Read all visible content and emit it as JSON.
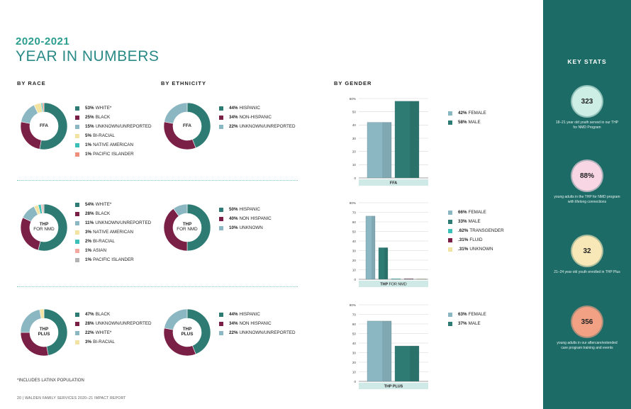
{
  "heading": {
    "year": "2020-2021",
    "title": "YEAR IN NUMBERS"
  },
  "columns": {
    "race": "BY RACE",
    "ethnicity": "BY ETHNICITY",
    "gender": "BY GENDER"
  },
  "colors": {
    "teal_dark": "#2e7b74",
    "maroon": "#7a1f45",
    "steel": "#8bb7c2",
    "gold": "#f3e3a3",
    "turquoise": "#3cc1b9",
    "salmon": "#ef8f7b",
    "pink": "#f4a8a0",
    "gray": "#b3b3b3",
    "sidebar": "#1d6b66"
  },
  "race": [
    {
      "label_line1": "FFA",
      "label_line2": "",
      "label_line2_style": "",
      "items": [
        {
          "pct": "53%",
          "label": "WHITE*",
          "value": 53,
          "color": "#2e7b74"
        },
        {
          "pct": "25%",
          "label": "BLACK",
          "value": 25,
          "color": "#7a1f45"
        },
        {
          "pct": "15%",
          "label": "UNKNOWN/UNREPORTED",
          "value": 15,
          "color": "#8bb7c2"
        },
        {
          "pct": "5%",
          "label": "BI-RACIAL",
          "value": 5,
          "color": "#f3e3a3"
        },
        {
          "pct": "1%",
          "label": "NATIVE AMERICAN",
          "value": 1,
          "color": "#3cc1b9"
        },
        {
          "pct": "1%",
          "label": "PACIFIC ISLANDER",
          "value": 1,
          "color": "#ef8f7b"
        }
      ]
    },
    {
      "label_line1": "THP",
      "label_line2": "FOR NMD",
      "items": [
        {
          "pct": "54%",
          "label": "WHITE*",
          "value": 54,
          "color": "#2e7b74"
        },
        {
          "pct": "28%",
          "label": "BLACK",
          "value": 28,
          "color": "#7a1f45"
        },
        {
          "pct": "11%",
          "label": "UNKNOWN/UNREPORTED",
          "value": 11,
          "color": "#8bb7c2"
        },
        {
          "pct": "3%",
          "label": "NATIVE AMERICAN",
          "value": 3,
          "color": "#f3e3a3"
        },
        {
          "pct": "2%",
          "label": "BI-RACIAL",
          "value": 2,
          "color": "#3cc1b9"
        },
        {
          "pct": "1%",
          "label": "ASIAN",
          "value": 1,
          "color": "#f4a8a0"
        },
        {
          "pct": "1%",
          "label": "PACIFIC ISLANDER",
          "value": 1,
          "color": "#b3b3b3"
        }
      ]
    },
    {
      "label_line1": "THP",
      "label_line2": "PLUS",
      "items": [
        {
          "pct": "47%",
          "label": "BLACK",
          "value": 47,
          "color": "#2e7b74"
        },
        {
          "pct": "28%",
          "label": "UNKNOWN/UNREPORTED",
          "value": 28,
          "color": "#7a1f45"
        },
        {
          "pct": "22%",
          "label": "WHITE*",
          "value": 22,
          "color": "#8bb7c2"
        },
        {
          "pct": "3%",
          "label": "BI-RACIAL",
          "value": 3,
          "color": "#f3e3a3"
        }
      ]
    }
  ],
  "ethnicity": [
    {
      "label_line1": "FFA",
      "label_line2": "",
      "items": [
        {
          "pct": "44%",
          "label": "HISPANIC",
          "value": 44,
          "color": "#2e7b74"
        },
        {
          "pct": "34%",
          "label": "NON-HISPANIC",
          "value": 34,
          "color": "#7a1f45"
        },
        {
          "pct": "22%",
          "label": "UNKNOWN/UNREPORTED",
          "value": 22,
          "color": "#8bb7c2"
        }
      ]
    },
    {
      "label_line1": "THP",
      "label_line2": "FOR NMD",
      "items": [
        {
          "pct": "50%",
          "label": "HISPANIC",
          "value": 50,
          "color": "#2e7b74"
        },
        {
          "pct": "40%",
          "label": "NON HISPANIC",
          "value": 40,
          "color": "#7a1f45"
        },
        {
          "pct": "10%",
          "label": "UNKNOWN",
          "value": 10,
          "color": "#8bb7c2"
        }
      ]
    },
    {
      "label_line1": "THP",
      "label_line2": "PLUS",
      "items": [
        {
          "pct": "44%",
          "label": "HISPANIC",
          "value": 44,
          "color": "#2e7b74"
        },
        {
          "pct": "34%",
          "label": "NON HISPANIC",
          "value": 34,
          "color": "#7a1f45"
        },
        {
          "pct": "22%",
          "label": "UNKNOWN/UNREPORTED",
          "value": 22,
          "color": "#8bb7c2"
        }
      ]
    }
  ],
  "chart_data": [
    {
      "type": "bar",
      "title": "FFA",
      "categories": [
        "FEMALE",
        "MALE"
      ],
      "values": [
        42,
        58
      ],
      "colors": [
        "#8bb7c2",
        "#2e7b74"
      ],
      "ylim": [
        0,
        60
      ],
      "yticks": [
        "0",
        "10",
        "20",
        "30",
        "40",
        "50",
        "60%"
      ],
      "legend": [
        {
          "pct": "42%",
          "label": "FEMALE",
          "color": "#8bb7c2"
        },
        {
          "pct": "58%",
          "label": "MALE",
          "color": "#2e7b74"
        }
      ]
    },
    {
      "type": "bar",
      "title_main": "THP",
      "title_thin": "FOR NMD",
      "categories": [
        "FEMALE",
        "MALE",
        "TRANSGENDER",
        "FLUID",
        "UNKNOWN"
      ],
      "values": [
        66,
        33,
        0.62,
        0.31,
        0.31
      ],
      "colors": [
        "#8bb7c2",
        "#2e7b74",
        "#3cc1b9",
        "#7a1f45",
        "#f3e3a3"
      ],
      "ylim": [
        0,
        80
      ],
      "yticks": [
        "0",
        "10",
        "20",
        "30",
        "40",
        "50",
        "60",
        "70",
        "80%"
      ],
      "legend": [
        {
          "pct": "66%",
          "label": "FEMALE",
          "color": "#8bb7c2"
        },
        {
          "pct": "33%",
          "label": "MALE",
          "color": "#2e7b74"
        },
        {
          "pct": ".62%",
          "label": "TRANSGENDER",
          "color": "#3cc1b9"
        },
        {
          "pct": ".31%",
          "label": "FLUID",
          "color": "#7a1f45"
        },
        {
          "pct": ".31%",
          "label": "UNKNOWN",
          "color": "#f3e3a3"
        }
      ]
    },
    {
      "type": "bar",
      "title": "THP PLUS",
      "categories": [
        "FEMALE",
        "MALE"
      ],
      "values": [
        63,
        37
      ],
      "colors": [
        "#8bb7c2",
        "#2e7b74"
      ],
      "ylim": [
        0,
        80
      ],
      "yticks": [
        "0",
        "10",
        "20",
        "30",
        "40",
        "50",
        "60",
        "70",
        "80%"
      ],
      "legend": [
        {
          "pct": "63%",
          "label": "FEMALE",
          "color": "#8bb7c2"
        },
        {
          "pct": "37%",
          "label": "MALE",
          "color": "#2e7b74"
        }
      ]
    }
  ],
  "sidebar": {
    "title": "KEY STATS",
    "stats": [
      {
        "value": "323",
        "color": "#cdeee5",
        "desc": "18–21 year old youth served in our THP for NMD Program"
      },
      {
        "value": "88%",
        "color": "#f9d6e4",
        "desc": "young adults in the THP for NMD program with lifelong connections"
      },
      {
        "value": "32",
        "color": "#f8e8b8",
        "desc": "21–24 year old youth enrolled in THP Plus"
      },
      {
        "value": "356",
        "color": "#f2a184",
        "desc": "young adults in our aftercare/extended care program training and events"
      }
    ]
  },
  "footnote": "*INCLUDES LATINX POPULATION",
  "page_footer": "20  |  WALDEN FAMILY SERVICES 2020–21 IMPACT REPORT"
}
